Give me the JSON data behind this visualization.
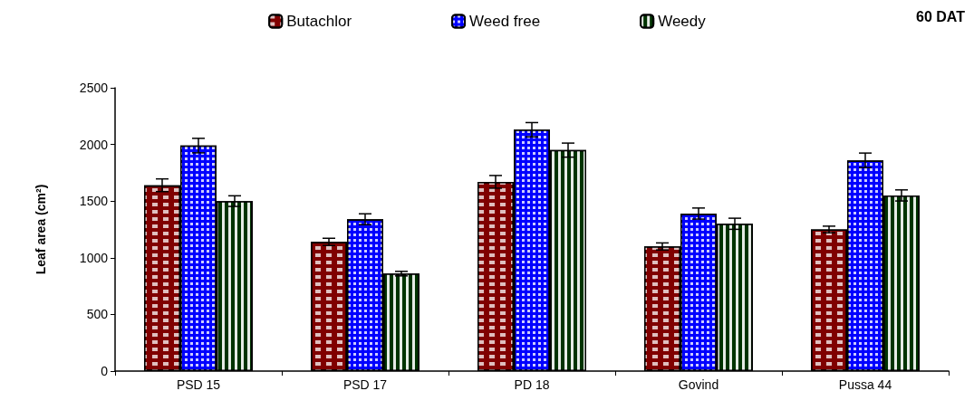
{
  "chart_data": {
    "type": "bar",
    "ylabel": "Leaf area (cm²)",
    "annotations": [
      "60 DAT"
    ],
    "categories": [
      "PSD 15",
      "PSD 17",
      "PD 18",
      "Govind",
      "Pussa 44"
    ],
    "series": [
      {
        "name": "Butachlor",
        "color": "#800000",
        "values": [
          1640,
          1140,
          1670,
          1100,
          1250
        ],
        "errors": [
          56,
          32,
          56,
          31,
          29
        ]
      },
      {
        "name": "Weed free",
        "color": "#0000ff",
        "values": [
          1990,
          1340,
          2130,
          1390,
          1860
        ],
        "errors": [
          64,
          48,
          63,
          49,
          64
        ]
      },
      {
        "name": "Weedy",
        "color": "#003300",
        "values": [
          1500,
          860,
          1950,
          1300,
          1550
        ],
        "errors": [
          47,
          20,
          62,
          49,
          49
        ]
      }
    ],
    "ylim": [
      0,
      2500
    ],
    "yticks": [
      0,
      500,
      1000,
      1500,
      2000,
      2500
    ],
    "grid": false,
    "legend": "top"
  }
}
